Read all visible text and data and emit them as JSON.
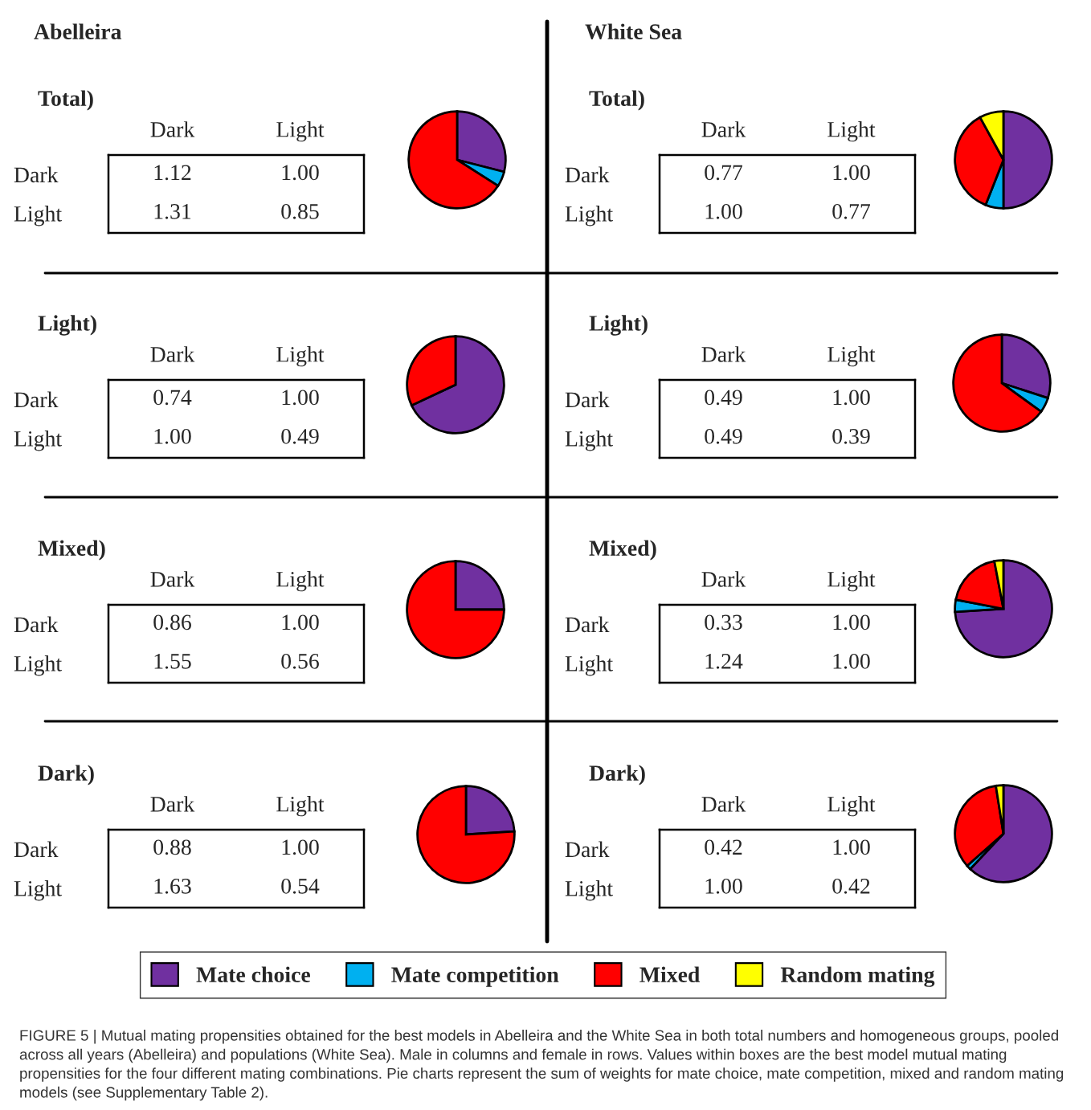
{
  "chart_data": [
    {
      "type": "heatmap",
      "title": "Abelleira",
      "subtitle": "Total)",
      "categories": [
        "Dark",
        "Light"
      ],
      "y_categories": [
        "Dark",
        "Light"
      ],
      "cells": [
        [
          1.12,
          1.0
        ],
        [
          1.31,
          0.85
        ]
      ],
      "cell_labels": [
        [
          "1.12",
          "1.00"
        ],
        [
          "1.31",
          "0.85"
        ]
      ]
    },
    {
      "type": "pie",
      "categories": [
        "Mate choice",
        "Mate competition",
        "Mixed",
        "Random mating"
      ],
      "values": [
        29,
        5,
        66,
        0
      ],
      "colors": [
        "#7030a0",
        "#00b0f0",
        "#ff0000",
        "#ffff00"
      ],
      "legend": "bottom"
    },
    {
      "type": "heatmap",
      "title": "White Sea",
      "subtitle": "Total)",
      "categories": [
        "Dark",
        "Light"
      ],
      "y_categories": [
        "Dark",
        "Light"
      ],
      "cells": [
        [
          0.77,
          1.0
        ],
        [
          1.0,
          0.77
        ]
      ],
      "cell_labels": [
        [
          "0.77",
          "1.00"
        ],
        [
          "1.00",
          "0.77"
        ]
      ]
    },
    {
      "type": "pie",
      "categories": [
        null,
        null,
        null,
        null
      ],
      "values": [
        50,
        6,
        36,
        8
      ],
      "colors": [
        "#7030a0",
        "#00b0f0",
        "#ff0000",
        "#ffff00"
      ]
    },
    {
      "type": "heatmap",
      "title": "Light)",
      "categories": [
        "Dark",
        "Light"
      ],
      "y_categories": [
        "Dark",
        "Light"
      ],
      "cells": [
        [
          0.74,
          1.0
        ],
        [
          1.0,
          0.49
        ]
      ],
      "cell_labels": [
        [
          "0.74",
          "1.00"
        ],
        [
          "1.00",
          "0.49"
        ]
      ]
    },
    {
      "type": "pie",
      "categories": [
        null,
        null,
        null,
        null
      ],
      "values": [
        68,
        0,
        32,
        0
      ],
      "colors": [
        "#7030a0",
        "#00b0f0",
        "#ff0000",
        "#ffff00"
      ]
    },
    {
      "type": "heatmap",
      "title": "Light)",
      "categories": [
        "Dark",
        "Light"
      ],
      "y_categories": [
        "Dark",
        "Light"
      ],
      "cells": [
        [
          0.49,
          1.0
        ],
        [
          0.49,
          0.39
        ]
      ],
      "cell_labels": [
        [
          "0.49",
          "1.00"
        ],
        [
          "0.49",
          "0.39"
        ]
      ]
    },
    {
      "type": "pie",
      "categories": [
        null,
        null,
        null,
        null
      ],
      "values": [
        30,
        5,
        65,
        0
      ],
      "colors": [
        "#7030a0",
        "#00b0f0",
        "#ff0000",
        "#ffff00"
      ]
    },
    {
      "type": "heatmap",
      "title": "Mixed)",
      "categories": [
        "Dark",
        "Light"
      ],
      "y_categories": [
        "Dark",
        "Light"
      ],
      "cells": [
        [
          0.86,
          1.0
        ],
        [
          1.55,
          0.56
        ]
      ],
      "cell_labels": [
        [
          "0.86",
          "1.00"
        ],
        [
          "1.55",
          "0.56"
        ]
      ]
    },
    {
      "type": "pie",
      "categories": [
        null,
        null,
        null,
        null
      ],
      "values": [
        25,
        0,
        75,
        0
      ],
      "colors": [
        "#7030a0",
        "#00b0f0",
        "#ff0000",
        "#ffff00"
      ]
    },
    {
      "type": "heatmap",
      "title": "Mixed)",
      "categories": [
        "Dark",
        "Light"
      ],
      "y_categories": [
        "Dark",
        "Light"
      ],
      "cells": [
        [
          0.33,
          1.0
        ],
        [
          1.24,
          1.0
        ]
      ],
      "cell_labels": [
        [
          "0.33",
          "1.00"
        ],
        [
          "1.24",
          "1.00"
        ]
      ]
    },
    {
      "type": "pie",
      "categories": [
        null,
        null,
        null,
        null
      ],
      "values": [
        74,
        4,
        19,
        3
      ],
      "colors": [
        "#7030a0",
        "#00b0f0",
        "#ff0000",
        "#ffff00"
      ]
    },
    {
      "type": "heatmap",
      "title": "Dark)",
      "categories": [
        "Dark",
        "Light"
      ],
      "y_categories": [
        "Dark",
        "Light"
      ],
      "cells": [
        [
          0.88,
          1.0
        ],
        [
          1.63,
          0.54
        ]
      ],
      "cell_labels": [
        [
          "0.88",
          "1.00"
        ],
        [
          "1.63",
          "0.54"
        ]
      ]
    },
    {
      "type": "pie",
      "categories": [
        null,
        null,
        null,
        null
      ],
      "values": [
        24,
        0,
        76,
        0
      ],
      "colors": [
        "#7030a0",
        "#00b0f0",
        "#ff0000",
        "#ffff00"
      ]
    },
    {
      "type": "heatmap",
      "title": "Dark)",
      "categories": [
        "Dark",
        "Light"
      ],
      "y_categories": [
        "Dark",
        "Light"
      ],
      "cells": [
        [
          0.42,
          1.0
        ],
        [
          1.0,
          0.42
        ]
      ],
      "cell_labels": [
        [
          "0.42",
          "1.00"
        ],
        [
          "1.00",
          "0.42"
        ]
      ]
    },
    {
      "type": "pie",
      "categories": [
        null,
        null,
        null,
        null
      ],
      "values": [
        62,
        1.5,
        34,
        2.5
      ],
      "colors": [
        "#7030a0",
        "#00b0f0",
        "#ff0000",
        "#ffff00"
      ],
      "annotations": [
        "FIGURE 5 | Mutual mating propensities obtained for the best models in Abelleira and the White Sea in both total numbers and homogeneous groups, pooled across all years (Abelleira) and populations (White Sea). Male in columns and female in rows. Values within boxes are the best model mutual mating propensities for the four different mating combinations. Pie charts represent the sum of weights for mate choice, mate competition, mixed and random mating models (see Supplementary Table 2)."
      ]
    }
  ]
}
